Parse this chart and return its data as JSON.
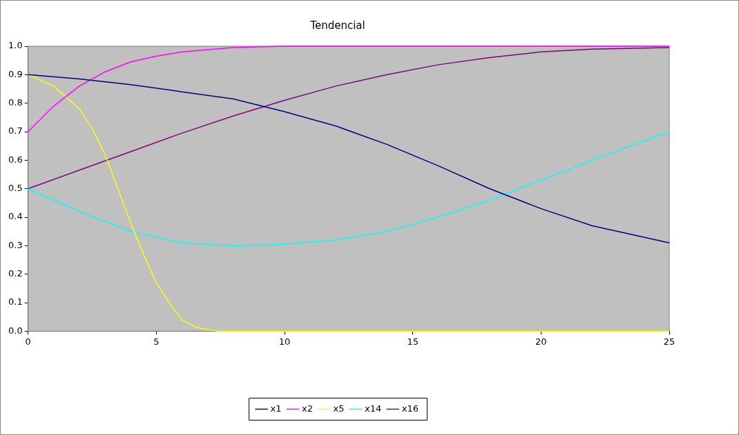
{
  "chart_data": {
    "type": "line",
    "title": "Tendencial",
    "xlim": [
      0,
      25
    ],
    "xticks": [
      0,
      5,
      10,
      15,
      20,
      25
    ],
    "ylim": [
      0,
      1
    ],
    "yticks": [
      {
        "value": 0,
        "label": "0.0"
      },
      {
        "value": 0.1,
        "label": "0.1"
      },
      {
        "value": 0.2,
        "label": "0.2"
      },
      {
        "value": 0.3,
        "label": "0.3"
      },
      {
        "value": 0.4,
        "label": "0.4"
      },
      {
        "value": 0.5,
        "label": "0.5"
      },
      {
        "value": 0.6,
        "label": "0.6"
      },
      {
        "value": 0.7,
        "label": "0.7"
      },
      {
        "value": 0.8,
        "label": "0.8"
      },
      {
        "value": 0.9,
        "label": "0.9"
      },
      {
        "value": 1,
        "label": "1.0"
      }
    ],
    "grid": false,
    "legend": "bottom",
    "marker": "none",
    "line_style": "solid",
    "series": [
      {
        "name": "x1",
        "color": "#000080",
        "x": [
          0,
          2,
          4,
          6,
          8,
          10,
          12,
          14,
          16,
          18,
          20,
          22,
          25
        ],
        "values": [
          0.9,
          0.885,
          0.865,
          0.84,
          0.815,
          0.77,
          0.72,
          0.655,
          0.58,
          0.5,
          0.43,
          0.37,
          0.31
        ]
      },
      {
        "name": "x2",
        "color": "#ff00ff",
        "x": [
          0,
          1,
          2,
          3,
          4,
          5,
          6,
          8,
          10,
          25
        ],
        "values": [
          0.7,
          0.79,
          0.86,
          0.91,
          0.945,
          0.965,
          0.98,
          0.995,
          1,
          1
        ]
      },
      {
        "name": "x5",
        "color": "#ffff00",
        "x": [
          0,
          1,
          2,
          2.5,
          3,
          3.5,
          4,
          4.5,
          5,
          5.5,
          6,
          6.5,
          7,
          7.5,
          25
        ],
        "values": [
          0.9,
          0.86,
          0.78,
          0.71,
          0.62,
          0.5,
          0.38,
          0.27,
          0.17,
          0.1,
          0.04,
          0.015,
          0.005,
          0,
          0
        ]
      },
      {
        "name": "x14",
        "color": "#00ffff",
        "x": [
          0,
          2,
          4,
          6,
          8,
          10,
          12,
          14,
          16,
          18,
          20,
          22,
          25
        ],
        "values": [
          0.5,
          0.42,
          0.35,
          0.31,
          0.3,
          0.305,
          0.32,
          0.35,
          0.4,
          0.46,
          0.53,
          0.6,
          0.7
        ]
      },
      {
        "name": "x16",
        "color": "#800080",
        "x": [
          0,
          2,
          4,
          6,
          8,
          10,
          12,
          14,
          16,
          18,
          20,
          22,
          25
        ],
        "values": [
          0.5,
          0.565,
          0.63,
          0.695,
          0.755,
          0.81,
          0.86,
          0.9,
          0.935,
          0.96,
          0.98,
          0.99,
          0.995
        ]
      }
    ]
  }
}
